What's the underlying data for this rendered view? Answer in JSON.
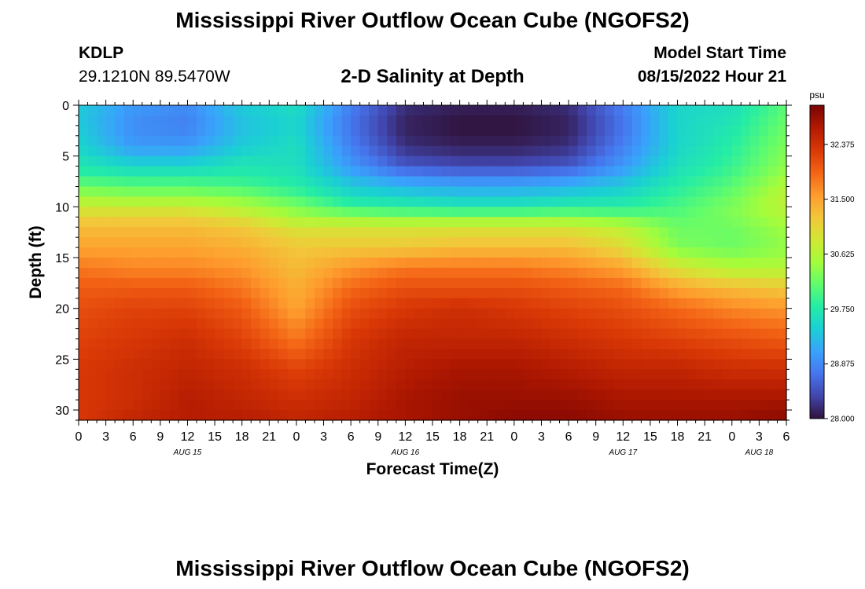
{
  "header": {
    "title": "Mississippi River Outflow Ocean Cube (NGOFS2)",
    "station_id": "KDLP",
    "station_coords": "29.1210N  89.5470W",
    "subtitle": "2-D Salinity at Depth",
    "model_start_label": "Model Start Time",
    "model_start_value": "08/15/2022 Hour 21"
  },
  "footer": {
    "title": "Mississippi River Outflow Ocean Cube (NGOFS2)"
  },
  "chart_data": {
    "type": "heatmap",
    "title": "2-D Salinity at Depth",
    "xlabel": "Forecast Time(Z)",
    "ylabel": "Depth (ft)",
    "xlim": [
      0,
      78
    ],
    "ylim": [
      31,
      0
    ],
    "x_tick_labels": [
      "0",
      "3",
      "6",
      "9",
      "12",
      "15",
      "18",
      "21",
      "0",
      "3",
      "6",
      "9",
      "12",
      "15",
      "18",
      "21",
      "0",
      "3",
      "6",
      "9",
      "12",
      "15",
      "18",
      "21",
      "0",
      "3",
      "6"
    ],
    "y_ticks": [
      0,
      5,
      10,
      15,
      20,
      25,
      30
    ],
    "date_labels": [
      {
        "label": "AUG 15",
        "x": 12
      },
      {
        "label": "AUG 16",
        "x": 36
      },
      {
        "label": "AUG 17",
        "x": 60
      },
      {
        "label": "AUG 18",
        "x": 75
      }
    ],
    "colorbar": {
      "unit": "psu",
      "min": 28.0,
      "max": 33.0,
      "ticks": [
        "28.000",
        "28.875",
        "29.750",
        "30.625",
        "31.500",
        "32.375"
      ],
      "colors": [
        "#30123b",
        "#4145ab",
        "#4675ed",
        "#39a2fc",
        "#1bcfd4",
        "#24eca6",
        "#61fc6c",
        "#a4fc3b",
        "#d1e834",
        "#f3c63a",
        "#fe9b2d",
        "#f36315",
        "#d93806",
        "#b11901",
        "#7a0402"
      ]
    },
    "time_hours": [
      0,
      6,
      12,
      18,
      24,
      30,
      36,
      42,
      48,
      54,
      60,
      66,
      72,
      78
    ],
    "depth_levels_ft": [
      0,
      2,
      4,
      6,
      7,
      8,
      9,
      10,
      11,
      12,
      14,
      16,
      18,
      20,
      23,
      26,
      29,
      31
    ],
    "salinity": [
      [
        29.4,
        29.0,
        28.9,
        29.4,
        29.6,
        28.8,
        28.2,
        28.1,
        28.1,
        28.2,
        28.8,
        29.5,
        29.6,
        30.1
      ],
      [
        29.4,
        28.9,
        28.8,
        29.3,
        29.5,
        28.7,
        28.1,
        28.0,
        28.0,
        28.1,
        28.7,
        29.5,
        29.7,
        30.2
      ],
      [
        29.5,
        29.0,
        29.0,
        29.4,
        29.6,
        28.8,
        28.2,
        28.1,
        28.1,
        28.2,
        28.8,
        29.5,
        29.8,
        30.3
      ],
      [
        29.7,
        29.5,
        29.5,
        29.7,
        29.6,
        29.0,
        28.5,
        28.4,
        28.4,
        28.5,
        29.0,
        29.6,
        29.9,
        30.4
      ],
      [
        29.9,
        29.8,
        29.8,
        29.8,
        29.7,
        29.2,
        28.9,
        28.8,
        28.8,
        28.9,
        29.2,
        29.7,
        30.0,
        30.5
      ],
      [
        30.2,
        30.1,
        30.1,
        30.0,
        29.8,
        29.4,
        29.2,
        29.1,
        29.1,
        29.2,
        29.4,
        29.8,
        30.1,
        30.6
      ],
      [
        30.5,
        30.4,
        30.4,
        30.3,
        30.0,
        29.6,
        29.5,
        29.4,
        29.4,
        29.5,
        29.6,
        29.9,
        30.2,
        30.7
      ],
      [
        30.8,
        30.8,
        30.8,
        30.6,
        30.3,
        29.9,
        29.8,
        29.7,
        29.7,
        29.8,
        29.8,
        30.0,
        30.3,
        30.7
      ],
      [
        31.1,
        31.1,
        31.1,
        30.9,
        30.5,
        30.4,
        30.3,
        30.3,
        30.3,
        30.3,
        30.2,
        30.1,
        30.3,
        30.6
      ],
      [
        31.3,
        31.3,
        31.3,
        31.2,
        30.9,
        30.9,
        30.9,
        30.9,
        30.9,
        30.9,
        30.7,
        30.2,
        30.2,
        30.5
      ],
      [
        31.5,
        31.5,
        31.5,
        31.4,
        31.2,
        31.2,
        31.2,
        31.3,
        31.3,
        31.3,
        31.0,
        30.3,
        30.2,
        30.4
      ],
      [
        31.8,
        31.7,
        31.7,
        31.6,
        31.3,
        31.6,
        31.8,
        31.8,
        31.8,
        31.7,
        31.5,
        30.9,
        30.6,
        30.6
      ],
      [
        32.0,
        32.0,
        32.0,
        31.8,
        31.4,
        31.9,
        32.1,
        32.1,
        32.1,
        32.0,
        31.9,
        31.5,
        31.3,
        31.2
      ],
      [
        32.1,
        32.2,
        32.2,
        32.0,
        31.5,
        32.1,
        32.3,
        32.4,
        32.3,
        32.2,
        32.1,
        31.9,
        31.7,
        31.6
      ],
      [
        32.2,
        32.3,
        32.4,
        32.2,
        31.8,
        32.3,
        32.5,
        32.5,
        32.5,
        32.4,
        32.3,
        32.2,
        32.1,
        32.0
      ],
      [
        32.3,
        32.4,
        32.5,
        32.4,
        32.2,
        32.4,
        32.6,
        32.7,
        32.7,
        32.6,
        32.5,
        32.5,
        32.4,
        32.4
      ],
      [
        32.3,
        32.4,
        32.6,
        32.5,
        32.4,
        32.5,
        32.7,
        32.8,
        32.8,
        32.8,
        32.7,
        32.7,
        32.7,
        32.7
      ],
      [
        32.3,
        32.5,
        32.6,
        32.6,
        32.5,
        32.6,
        32.7,
        32.8,
        32.9,
        32.9,
        32.8,
        32.8,
        32.8,
        32.9
      ]
    ]
  }
}
